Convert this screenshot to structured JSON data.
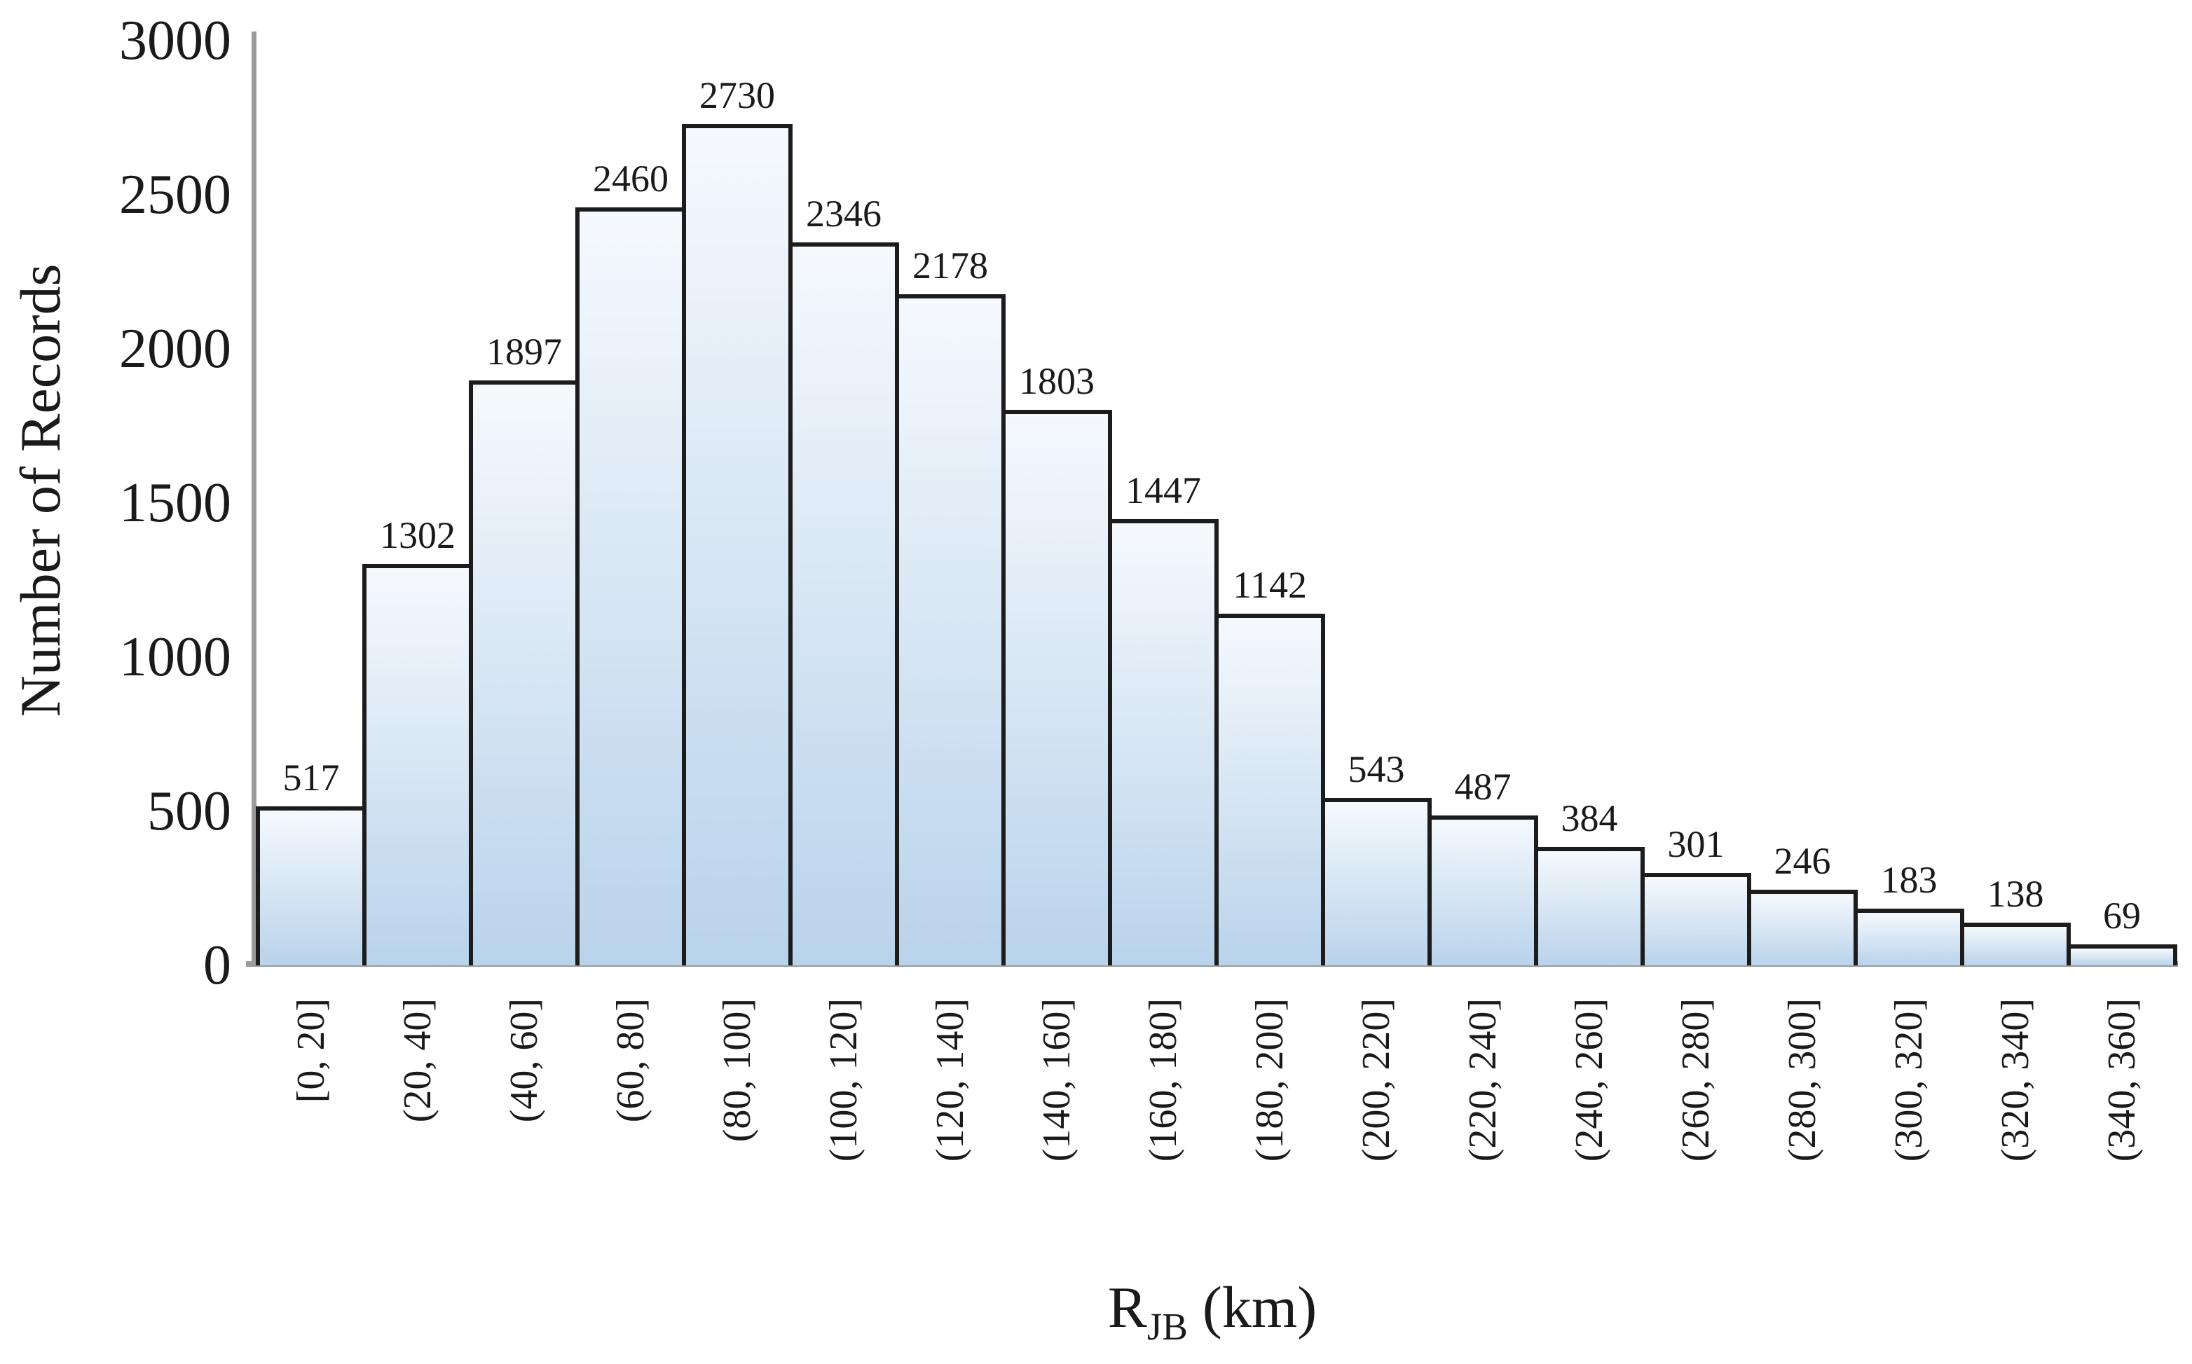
{
  "chart_data": {
    "type": "bar",
    "title": "",
    "ylabel": "Number of Records",
    "xlabel": "R_JB (km)",
    "xlabel_parts": {
      "main": "R",
      "sub": "JB",
      "unit": " (km)"
    },
    "categories": [
      "[0, 20]",
      "(20, 40]",
      "(40, 60]",
      "(60, 80]",
      "(80, 100]",
      "(100, 120]",
      "(120, 140]",
      "(140, 160]",
      "(160, 180]",
      "(180, 200]",
      "(200, 220]",
      "(220, 240]",
      "(240, 260]",
      "(260, 280]",
      "(280, 300]",
      "(300, 320]",
      "(320, 340]",
      "(340, 360]"
    ],
    "values": [
      517,
      1302,
      1897,
      2460,
      2730,
      2346,
      2178,
      1803,
      1447,
      1142,
      543,
      487,
      384,
      301,
      246,
      183,
      138,
      69
    ],
    "yticks": [
      0,
      500,
      1000,
      1500,
      2000,
      2500,
      3000
    ],
    "ylim": [
      0,
      3000
    ],
    "grid": false,
    "legend": "none",
    "data_labels": true,
    "colors": {
      "bar_fill_top": "#f5f9fd",
      "bar_fill_bottom": "#b9d3eb",
      "bar_border": "#1c1c1c",
      "axis_line": "#9b9b9b",
      "text": "#1a1a1a",
      "background": "#ffffff"
    }
  }
}
